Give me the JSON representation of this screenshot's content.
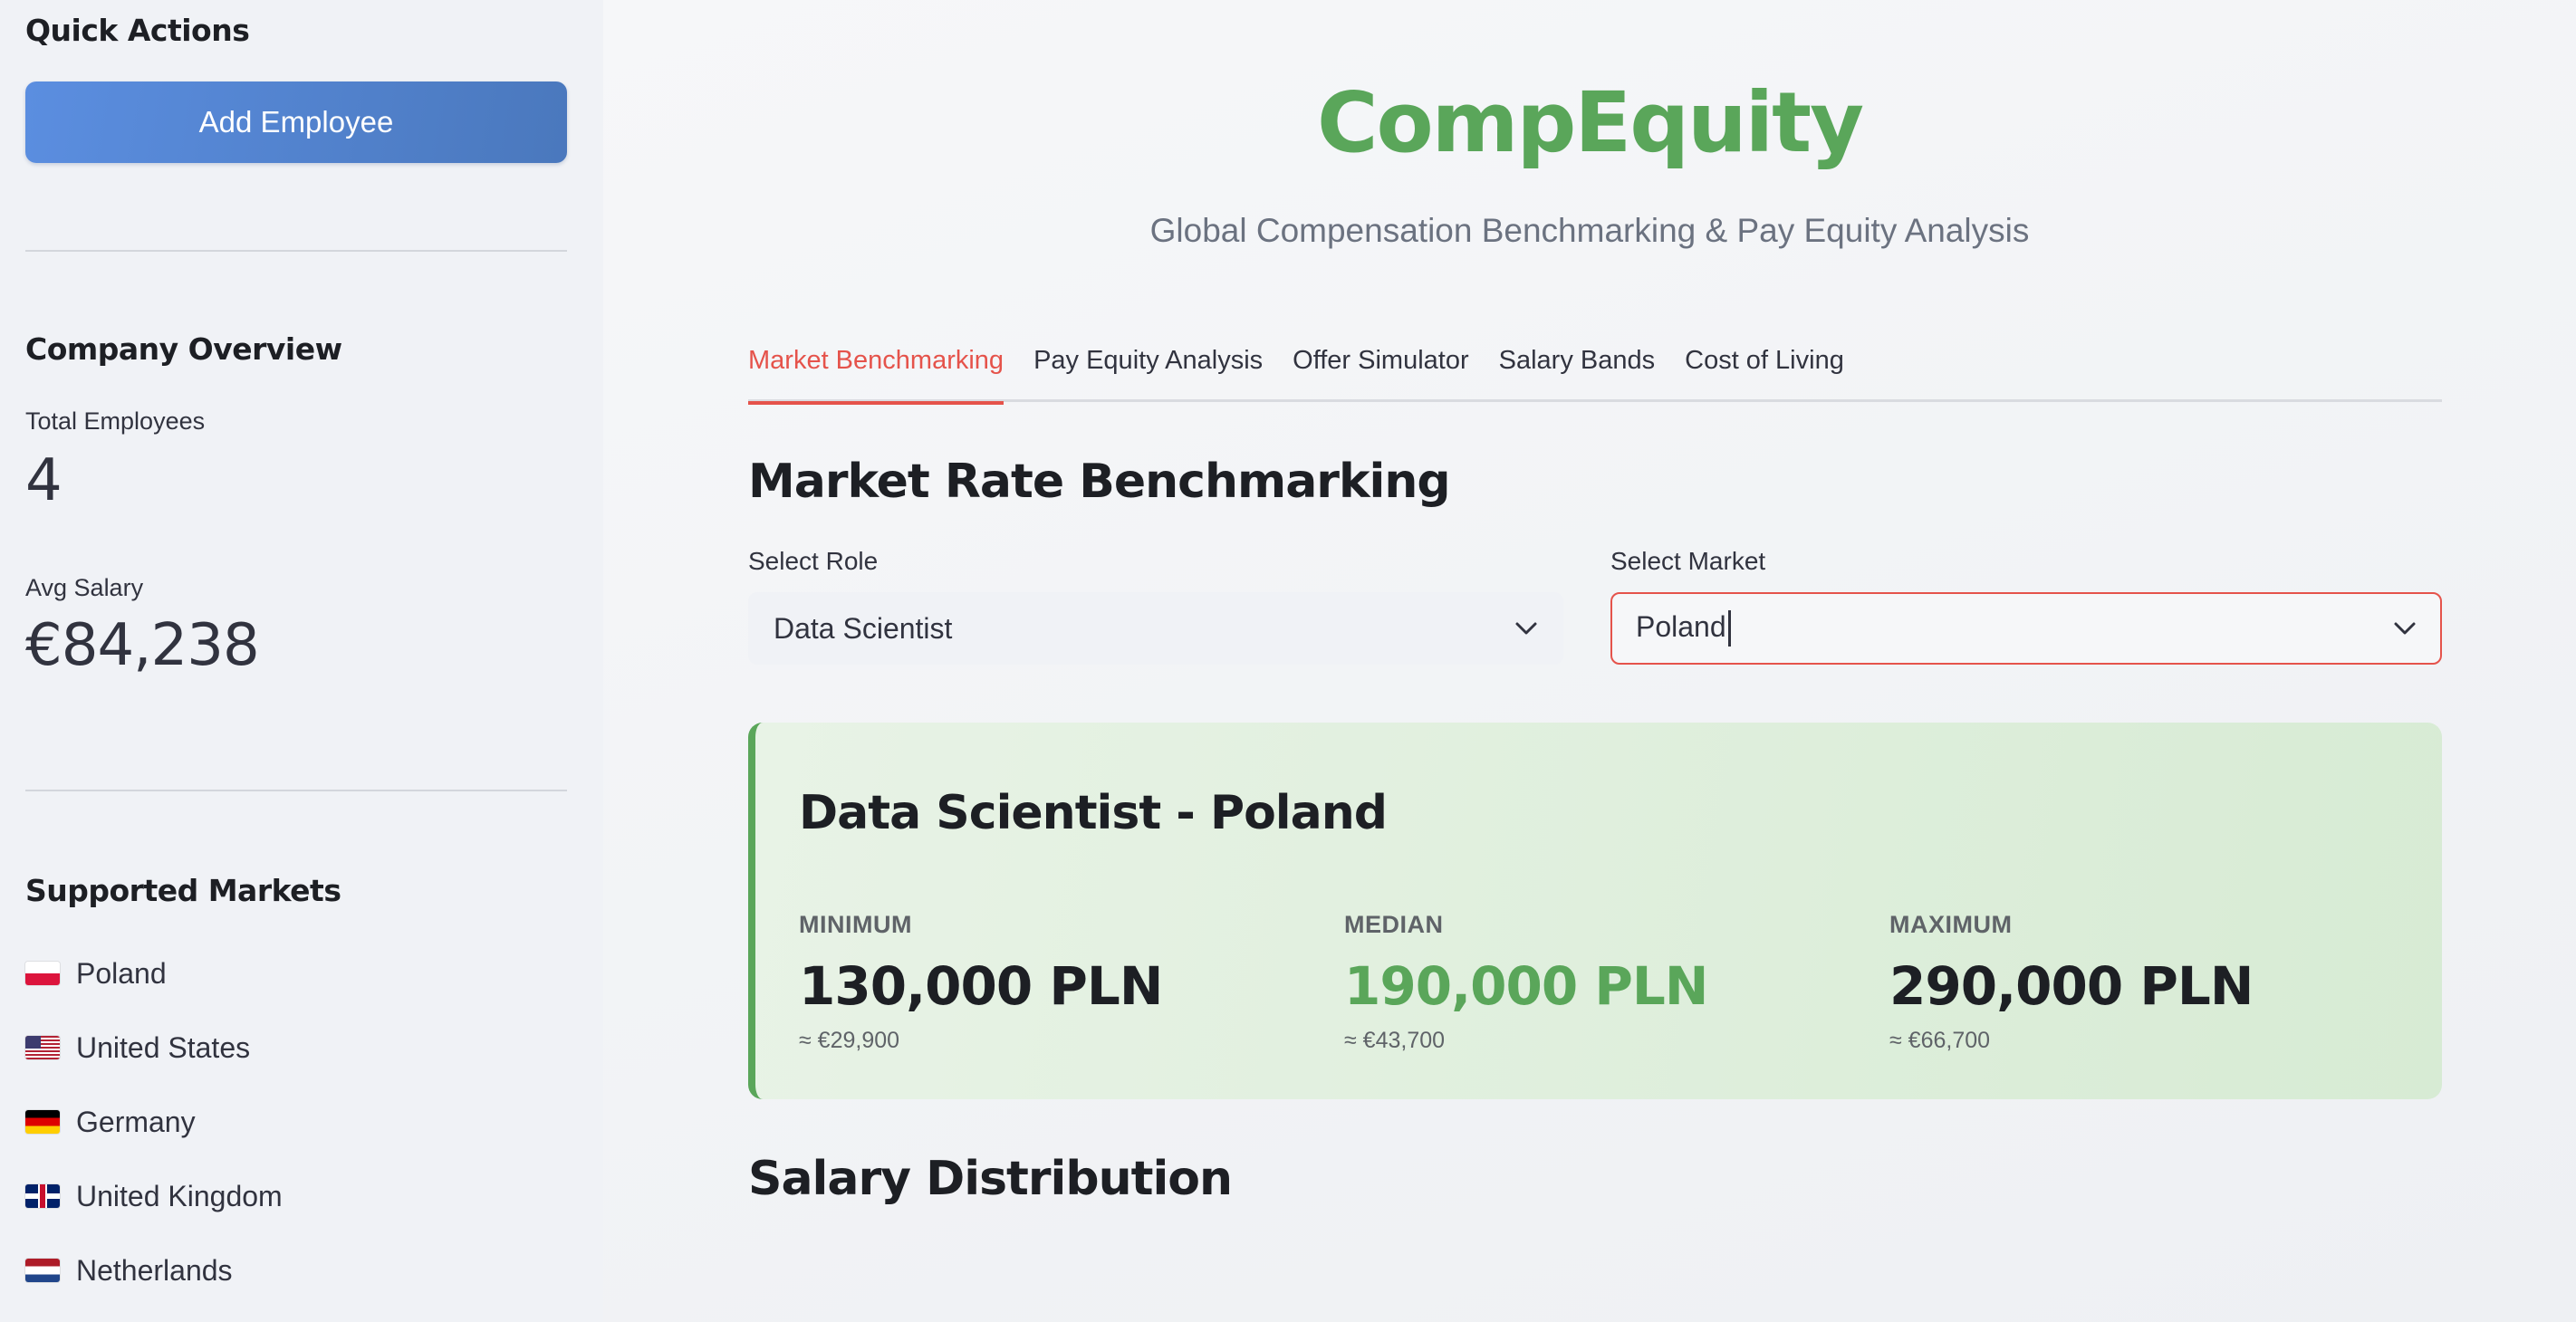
{
  "sidebar": {
    "quick_actions_heading": "Quick Actions",
    "add_employee_label": "Add Employee",
    "company_overview_heading": "Company Overview",
    "total_employees_label": "Total Employees",
    "total_employees_value": "4",
    "avg_salary_label": "Avg Salary",
    "avg_salary_value": "€84,238",
    "supported_markets_heading": "Supported Markets",
    "markets": [
      {
        "flag": "flag-poland-icon",
        "label": "Poland"
      },
      {
        "flag": "flag-united-states-icon",
        "label": "United States"
      },
      {
        "flag": "flag-germany-icon",
        "label": "Germany"
      },
      {
        "flag": "flag-united-kingdom-icon",
        "label": "United Kingdom"
      },
      {
        "flag": "flag-netherlands-icon",
        "label": "Netherlands"
      }
    ]
  },
  "header": {
    "title": "CompEquity",
    "subtitle": "Global Compensation Benchmarking & Pay Equity Analysis"
  },
  "tabs": [
    {
      "label": "Market Benchmarking",
      "active": true
    },
    {
      "label": "Pay Equity Analysis",
      "active": false
    },
    {
      "label": "Offer Simulator",
      "active": false
    },
    {
      "label": "Salary Bands",
      "active": false
    },
    {
      "label": "Cost of Living",
      "active": false
    }
  ],
  "benchmark": {
    "section_title": "Market Rate Benchmarking",
    "role_label": "Select Role",
    "role_value": "Data Scientist",
    "market_label": "Select Market",
    "market_value": "Poland",
    "card": {
      "title": "Data Scientist - Poland",
      "minimum_label": "MINIMUM",
      "minimum_value": "130,000 PLN",
      "minimum_eur": "≈ €29,900",
      "median_label": "MEDIAN",
      "median_value": "190,000 PLN",
      "median_eur": "≈ €43,700",
      "maximum_label": "MAXIMUM",
      "maximum_value": "290,000 PLN",
      "maximum_eur": "≈ €66,700"
    },
    "distribution_title": "Salary Distribution"
  },
  "colors": {
    "brand_green": "#5aa65a",
    "accent_red": "#e5534b",
    "button_blue": "#4a78bd"
  }
}
